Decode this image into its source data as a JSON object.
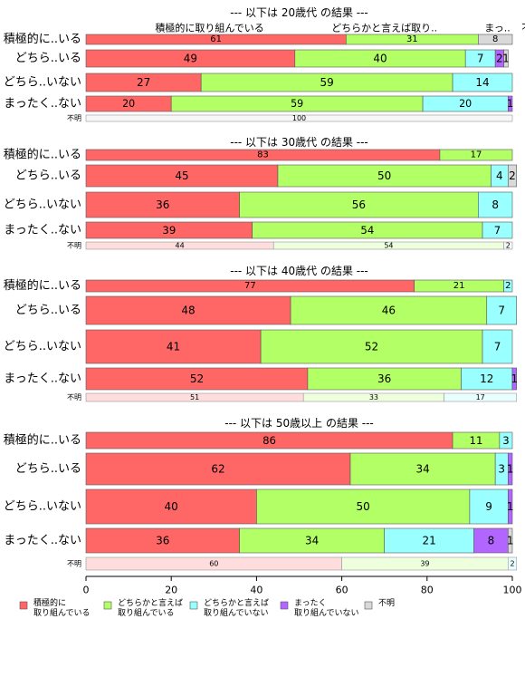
{
  "chart_data": {
    "type": "bar",
    "orientation": "horizontal",
    "stacked": true,
    "xlim": [
      0,
      100
    ],
    "x_ticks": [
      "0",
      "20",
      "40",
      "60",
      "80",
      "100"
    ],
    "series": [
      {
        "name": "積極的に\n取り組んでいる",
        "color": "#ff6666"
      },
      {
        "name": "どちらかと言えば\n取り組んでいる",
        "color": "#b3ff66"
      },
      {
        "name": "どちらかと言えば\n取り組んでいない",
        "color": "#99ffff"
      },
      {
        "name": "まったく\n取り組んでいない",
        "color": "#b266ff"
      },
      {
        "name": "不明",
        "color": "#d9d9d9"
      }
    ],
    "groups": [
      {
        "title": "--- 以下は 20歳代 の結果 ---",
        "header_labels": [
          {
            "text": "積極的に取り組んでいる",
            "at": 0.29
          },
          {
            "text": "どちらかと言えば取り..",
            "at": 0.7
          },
          {
            "text": "まっ..",
            "at": 0.965
          },
          {
            "text": "不明",
            "at": 1.045
          }
        ],
        "rows": [
          {
            "label": "積極的に..いる",
            "values": [
              61,
              31,
              0,
              0,
              8
            ],
            "labels": [
              "61",
              "31",
              "",
              "",
              "8"
            ]
          },
          {
            "label": "どちら..いる",
            "values": [
              49,
              40,
              7,
              2,
              1
            ],
            "labels": [
              "49",
              "40",
              "7",
              "2",
              "1"
            ]
          },
          {
            "label": "どちら..いない",
            "values": [
              27,
              59,
              14,
              0,
              0
            ],
            "labels": [
              "27",
              "59",
              "14",
              "",
              ""
            ]
          },
          {
            "label": "まったく..ない",
            "values": [
              20,
              59,
              20,
              1,
              0
            ],
            "labels": [
              "20",
              "59",
              "20",
              "1",
              ""
            ]
          }
        ],
        "unknown": {
          "label": "不明",
          "values": [
            0,
            0,
            0,
            0,
            100
          ],
          "labels": [
            "",
            "",
            "",
            "",
            "100"
          ]
        }
      },
      {
        "title": "--- 以下は 30歳代 の結果 ---",
        "header_labels": [],
        "rows": [
          {
            "label": "積極的に..いる",
            "values": [
              83,
              17,
              0,
              0,
              0
            ],
            "labels": [
              "83",
              "17",
              "",
              "",
              ""
            ]
          },
          {
            "label": "どちら..いる",
            "values": [
              45,
              50,
              4,
              0,
              2
            ],
            "labels": [
              "45",
              "50",
              "4",
              "",
              "2"
            ]
          },
          {
            "label": "どちら..いない",
            "values": [
              36,
              56,
              8,
              0,
              0
            ],
            "labels": [
              "36",
              "56",
              "8",
              "",
              ""
            ]
          },
          {
            "label": "まったく..ない",
            "values": [
              39,
              54,
              7,
              0,
              0
            ],
            "labels": [
              "39",
              "54",
              "7",
              "",
              ""
            ]
          }
        ],
        "unknown": {
          "label": "不明",
          "values": [
            44,
            54,
            0,
            0,
            2
          ],
          "labels": [
            "44",
            "54",
            "",
            "",
            "2"
          ]
        }
      },
      {
        "title": "--- 以下は 40歳代 の結果 ---",
        "header_labels": [],
        "rows": [
          {
            "label": "積極的に..いる",
            "values": [
              77,
              21,
              2,
              0,
              0
            ],
            "labels": [
              "77",
              "21",
              "2",
              "",
              ""
            ]
          },
          {
            "label": "どちら..いる",
            "values": [
              48,
              46,
              7,
              0,
              0
            ],
            "labels": [
              "48",
              "46",
              "7",
              "",
              ""
            ]
          },
          {
            "label": "どちら..いない",
            "values": [
              41,
              52,
              7,
              0,
              0
            ],
            "labels": [
              "41",
              "52",
              "7",
              "",
              ""
            ]
          },
          {
            "label": "まったく..ない",
            "values": [
              52,
              36,
              12,
              1,
              0
            ],
            "labels": [
              "52",
              "36",
              "12",
              "1",
              ""
            ]
          }
        ],
        "unknown": {
          "label": "不明",
          "values": [
            51,
            33,
            17,
            0,
            0
          ],
          "labels": [
            "51",
            "33",
            "17",
            "",
            ""
          ]
        }
      },
      {
        "title": "--- 以下は 50歳以上 の結果 ---",
        "header_labels": [],
        "rows": [
          {
            "label": "積極的に..いる",
            "values": [
              86,
              11,
              3,
              0,
              0
            ],
            "labels": [
              "86",
              "11",
              "3",
              "",
              ""
            ]
          },
          {
            "label": "どちら..いる",
            "values": [
              62,
              34,
              3,
              1,
              0
            ],
            "labels": [
              "62",
              "34",
              "3",
              "1",
              ""
            ]
          },
          {
            "label": "どちら..いない",
            "values": [
              40,
              50,
              9,
              1,
              0
            ],
            "labels": [
              "40",
              "50",
              "9",
              "1",
              ""
            ]
          },
          {
            "label": "まったく..ない",
            "values": [
              36,
              34,
              21,
              8,
              1
            ],
            "labels": [
              "36",
              "34",
              "21",
              "8",
              "1"
            ]
          }
        ],
        "unknown": {
          "label": "不明",
          "values": [
            60,
            39,
            2,
            0,
            0
          ],
          "labels": [
            "60",
            "39",
            "2",
            "",
            ""
          ]
        }
      }
    ]
  }
}
